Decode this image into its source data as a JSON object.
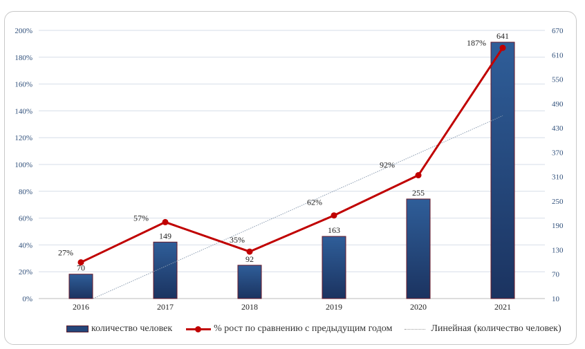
{
  "chart_data": {
    "type": "bar",
    "categories": [
      "2016",
      "2017",
      "2018",
      "2019",
      "2020",
      "2021"
    ],
    "series": [
      {
        "name": "количество человек",
        "type": "bar",
        "axis": "right",
        "values": [
          70,
          149,
          92,
          163,
          255,
          641
        ],
        "labels": [
          "70",
          "149",
          "92",
          "163",
          "255",
          "641"
        ],
        "color": "#24467a"
      },
      {
        "name": "% рост по сравнению с предыдущим годом",
        "type": "line",
        "axis": "left",
        "values": [
          27,
          57,
          35,
          62,
          92,
          187
        ],
        "labels": [
          "27%",
          "57%",
          "35%",
          "62%",
          "92%",
          "187%"
        ],
        "color": "#c00000"
      },
      {
        "name": "Линейная (количество человек)",
        "type": "trendline",
        "axis": "right",
        "of": "количество человек",
        "color": "#8a9bb0"
      }
    ],
    "left_axis": {
      "min": 0,
      "max": 200,
      "step": 20,
      "ticks": [
        "0%",
        "20%",
        "40%",
        "60%",
        "80%",
        "100%",
        "120%",
        "140%",
        "160%",
        "180%",
        "200%"
      ]
    },
    "right_axis": {
      "min": 10,
      "max": 670,
      "step": 60,
      "ticks": [
        "10",
        "70",
        "130",
        "190",
        "250",
        "310",
        "370",
        "430",
        "490",
        "550",
        "610",
        "670"
      ]
    },
    "grid": true,
    "legend_position": "bottom"
  }
}
